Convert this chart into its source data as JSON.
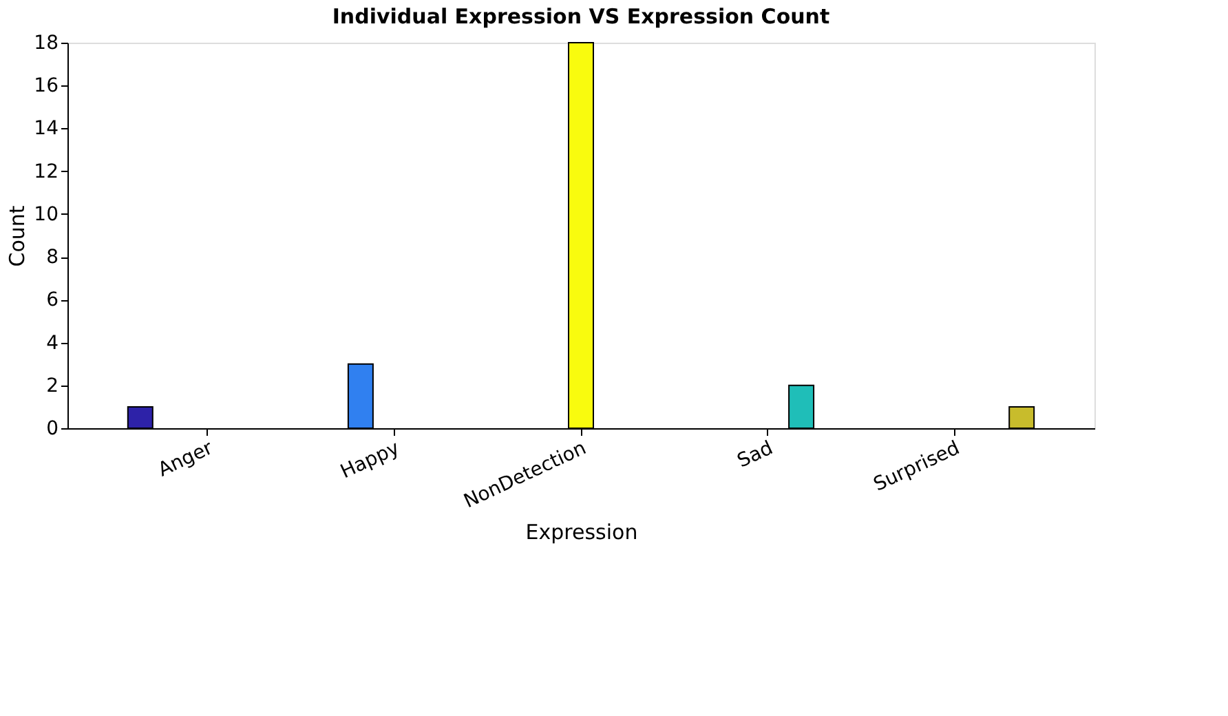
{
  "chart_data": {
    "type": "bar",
    "title": "Individual Expression VS Expression Count",
    "xlabel": "Expression",
    "ylabel": "Count",
    "categories": [
      "Anger",
      "Happy",
      "NonDetection",
      "Sad",
      "Surprised"
    ],
    "series": [
      {
        "color": "#2d22a8",
        "values": [
          1,
          null,
          null,
          null,
          null
        ]
      },
      {
        "color": "#3080f0",
        "values": [
          null,
          3,
          null,
          null,
          null
        ]
      },
      {
        "color": "#f9fb0e",
        "values": [
          null,
          null,
          18,
          null,
          null
        ]
      },
      {
        "color": "#1fbeb8",
        "values": [
          null,
          null,
          null,
          2,
          null
        ]
      },
      {
        "color": "#c8bc2c",
        "values": [
          null,
          null,
          null,
          null,
          1
        ]
      }
    ],
    "ylim": [
      0,
      18
    ],
    "yticks": [
      0,
      2,
      4,
      6,
      8,
      10,
      12,
      14,
      16,
      18
    ],
    "grid": false,
    "legend": false
  }
}
